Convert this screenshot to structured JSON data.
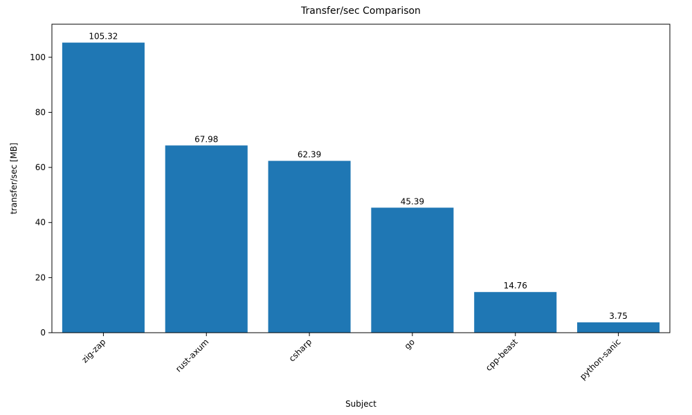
{
  "chart_data": {
    "type": "bar",
    "title": "Transfer/sec Comparison",
    "xlabel": "Subject",
    "ylabel": "transfer/sec [MB]",
    "categories": [
      "zig-zap",
      "rust-axum",
      "csharp",
      "go",
      "cpp-beast",
      "python-sanic"
    ],
    "values": [
      105.32,
      67.98,
      62.39,
      45.39,
      14.76,
      3.75
    ],
    "value_labels": [
      "105.32",
      "67.98",
      "62.39",
      "45.39",
      "14.76",
      "3.75"
    ],
    "yticks": [
      0,
      20,
      40,
      60,
      80,
      100
    ],
    "ylim": [
      0,
      112
    ],
    "bar_color": "#1f77b4",
    "grid": "off",
    "legend": "none",
    "x_tick_rotation_deg": 45
  }
}
